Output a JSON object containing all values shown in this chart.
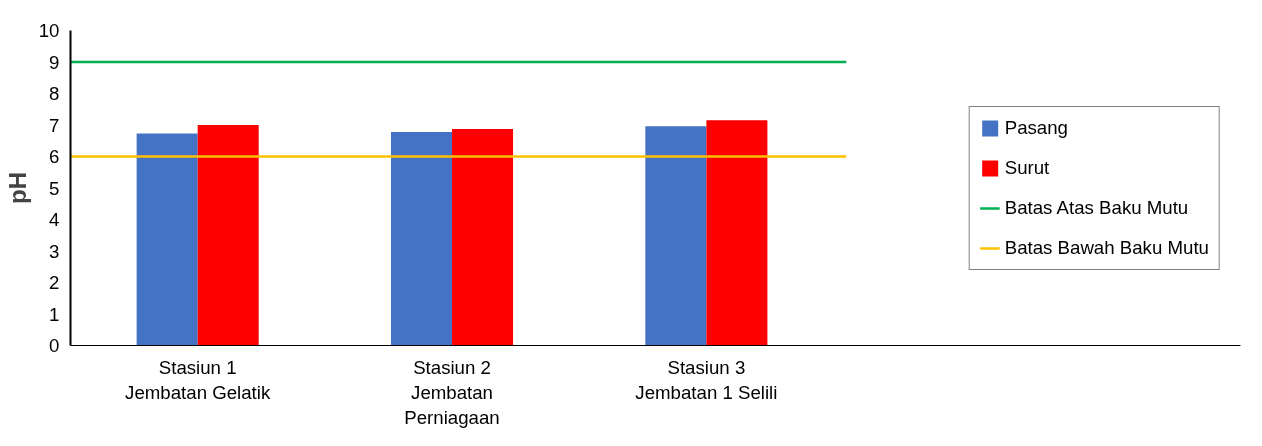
{
  "chart_data": {
    "type": "bar",
    "ylabel": "pH",
    "categories": [
      "Stasiun 1\nJembatan Gelatik",
      "Stasiun 2\nJembatan\nPerniagaan",
      "Stasiun 3\nJembatan 1 Selili"
    ],
    "series": [
      {
        "name": "Pasang",
        "color": "#4472c4",
        "values": [
          6.73,
          6.78,
          6.96
        ]
      },
      {
        "name": "Surut",
        "color": "#ff0000",
        "values": [
          7.0,
          6.87,
          7.15
        ]
      }
    ],
    "ylim": [
      0,
      10
    ],
    "yticks": [
      0,
      1,
      2,
      3,
      4,
      5,
      6,
      7,
      8,
      9,
      10
    ],
    "ref_lines": [
      {
        "axis": "y",
        "value": 9,
        "label": "Batas Atas Baku Mutu",
        "color": "#00b050"
      },
      {
        "axis": "y",
        "value": 6,
        "label": "Batas Bawah Baku Mutu",
        "color": "#ffc000"
      }
    ],
    "grid": false,
    "legend": "right"
  }
}
